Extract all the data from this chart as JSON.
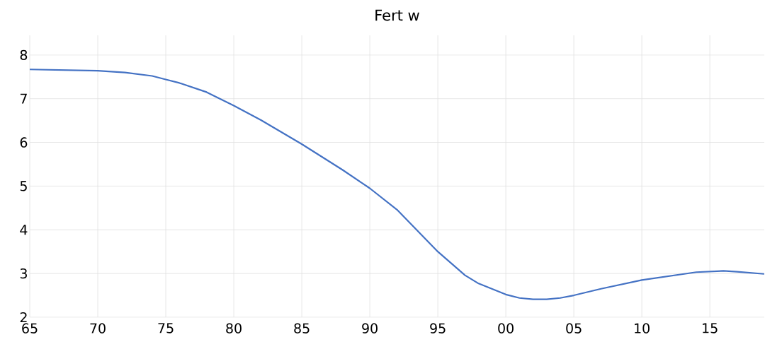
{
  "chart_data": {
    "type": "line",
    "title": "Fert w",
    "x": [
      1965,
      1970,
      1972,
      1974,
      1975,
      1976,
      1978,
      1980,
      1982,
      1985,
      1988,
      1990,
      1992,
      1995,
      1997,
      1998,
      2000,
      2001,
      2002,
      2003,
      2004,
      2005,
      2007,
      2010,
      2012,
      2014,
      2016,
      2017,
      2019
    ],
    "series": [
      {
        "color": "#4472c4",
        "values": [
          7.67,
          7.64,
          7.6,
          7.52,
          7.44,
          7.36,
          7.15,
          6.84,
          6.51,
          5.96,
          5.37,
          4.95,
          4.46,
          3.5,
          2.96,
          2.77,
          2.52,
          2.44,
          2.41,
          2.41,
          2.44,
          2.5,
          2.65,
          2.85,
          2.94,
          3.03,
          3.06,
          3.04,
          2.99
        ]
      }
    ],
    "xlim": [
      1965,
      2019
    ],
    "xticks": [
      {
        "value": 1965,
        "label": "65"
      },
      {
        "value": 1970,
        "label": "70"
      },
      {
        "value": 1975,
        "label": "75"
      },
      {
        "value": 1980,
        "label": "80"
      },
      {
        "value": 1985,
        "label": "85"
      },
      {
        "value": 1990,
        "label": "90"
      },
      {
        "value": 1995,
        "label": "95"
      },
      {
        "value": 2000,
        "label": "00"
      },
      {
        "value": 2005,
        "label": "05"
      },
      {
        "value": 2010,
        "label": "10"
      },
      {
        "value": 2015,
        "label": "15"
      }
    ],
    "ylim": [
      2,
      8.45
    ],
    "yticks": [
      2,
      3,
      4,
      5,
      6,
      7,
      8
    ],
    "grid": true
  }
}
